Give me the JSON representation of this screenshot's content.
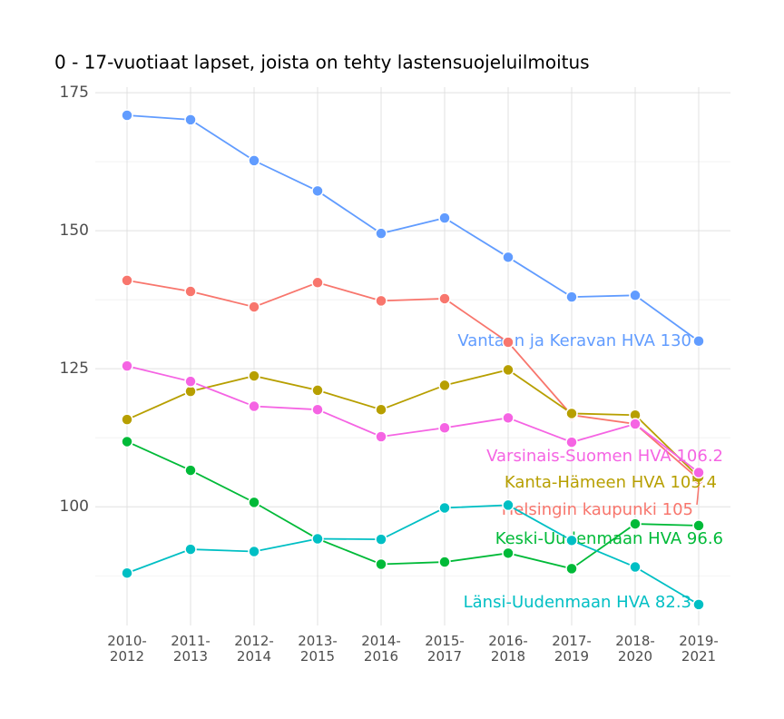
{
  "chart_data": {
    "type": "line",
    "title": "0 - 17-vuotiaat lapset, joista on tehty lastensuojeluilmoitus",
    "categories": [
      "2010-2012",
      "2011-2013",
      "2012-2014",
      "2013-2015",
      "2014-2016",
      "2015-2017",
      "2016-2018",
      "2017-2019",
      "2018-2020",
      "2019-2021"
    ],
    "ylim": [
      78.5,
      176
    ],
    "yticks": [
      100,
      125,
      150,
      175
    ],
    "grid": true,
    "series": [
      {
        "name": "Vantaan ja Keravan HVA",
        "label": "Vantaan ja Keravan HVA 130",
        "color": "#619cff",
        "values": [
          170.9,
          170.1,
          162.7,
          157.2,
          149.5,
          152.3,
          145.2,
          138.0,
          138.3,
          130
        ]
      },
      {
        "name": "Helsingin kaupunki",
        "label": "Helsingin kaupunki 105",
        "color": "#f8766d",
        "values": [
          141.0,
          139.0,
          136.2,
          140.6,
          137.3,
          137.7,
          129.8,
          116.6,
          115.0,
          105
        ]
      },
      {
        "name": "Kanta-Hämeen HVA",
        "label": "Kanta-Hämeen HVA 105.4",
        "color": "#b79f00",
        "values": [
          115.8,
          120.9,
          123.7,
          121.1,
          117.6,
          122.0,
          124.8,
          116.9,
          116.6,
          105.4
        ]
      },
      {
        "name": "Varsinais-Suomen HVA",
        "label": "Varsinais-Suomen HVA 106.2",
        "color": "#f564e3",
        "values": [
          125.5,
          122.7,
          118.2,
          117.6,
          112.7,
          114.3,
          116.1,
          111.7,
          115.0,
          106.2
        ]
      },
      {
        "name": "Keski-Uudenmaan HVA",
        "label": "Keski-Uudenmaan HVA 96.6",
        "color": "#00ba38",
        "values": [
          111.8,
          106.6,
          100.8,
          94.2,
          89.6,
          90.0,
          91.6,
          88.8,
          96.9,
          96.6
        ]
      },
      {
        "name": "Länsi-Uudenmaan HVA",
        "label": "Länsi-Uudenmaan HVA 82.3",
        "color": "#00bfc4",
        "values": [
          88.0,
          92.3,
          91.9,
          94.2,
          94.1,
          99.8,
          100.3,
          93.9,
          89.1,
          82.3
        ]
      }
    ]
  }
}
